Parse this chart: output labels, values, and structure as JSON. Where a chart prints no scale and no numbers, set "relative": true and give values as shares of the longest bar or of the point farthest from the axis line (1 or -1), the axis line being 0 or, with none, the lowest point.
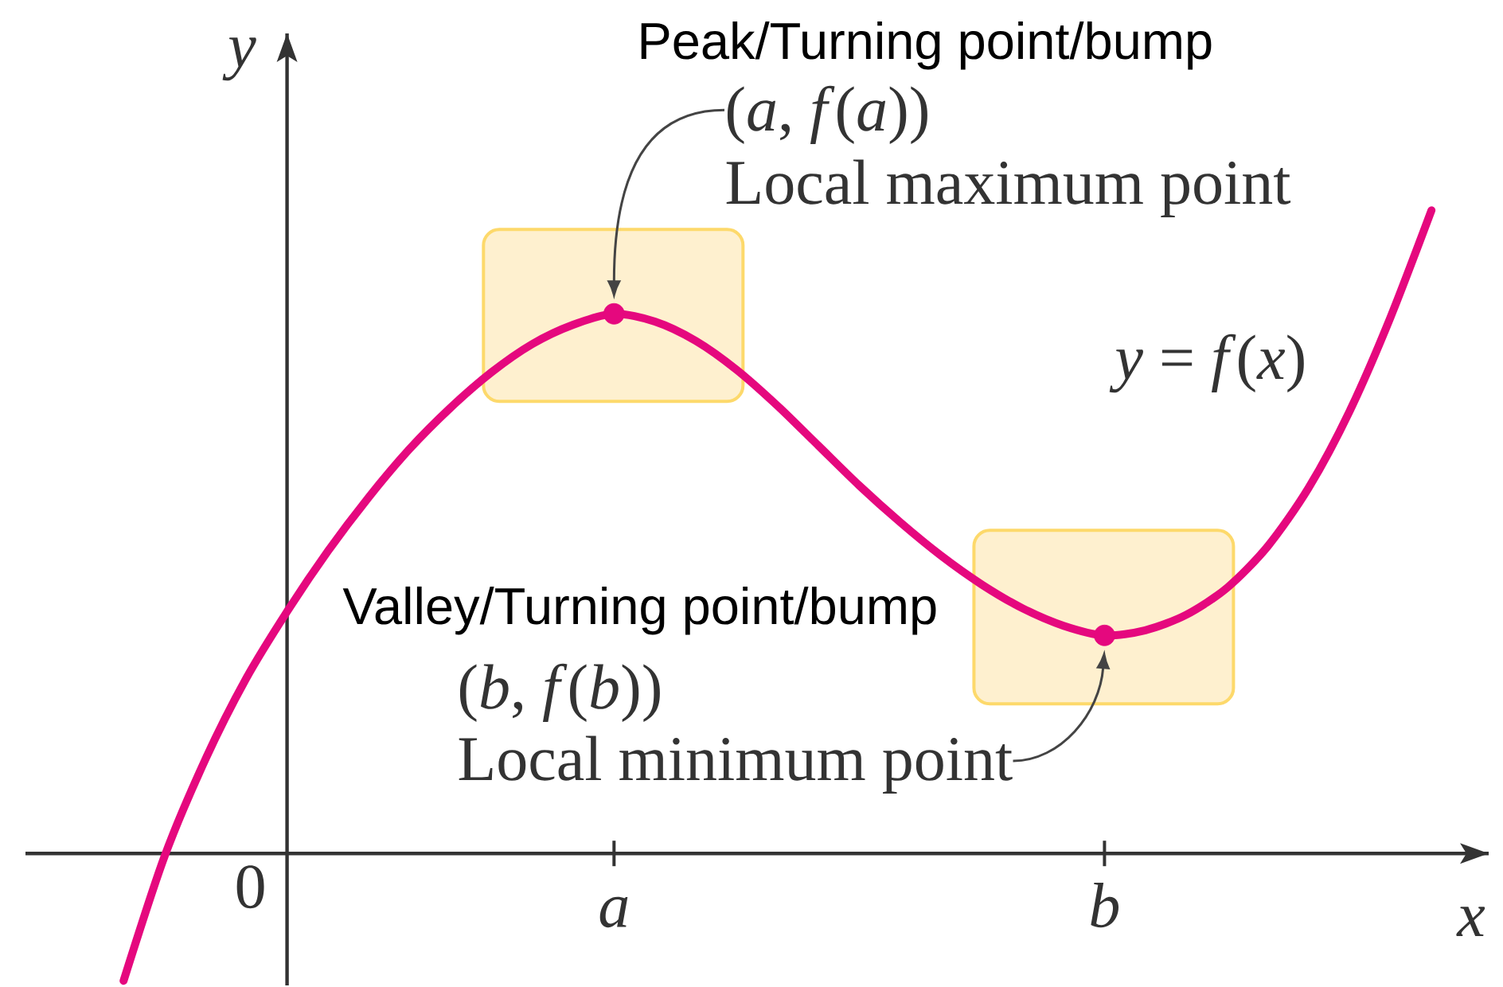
{
  "chart_data": {
    "type": "line",
    "relative": true,
    "xlabel": "x",
    "ylabel": "y",
    "categories": [
      null,
      null,
      null,
      null,
      "0",
      null,
      null,
      null,
      null,
      null,
      null,
      null,
      "a",
      null,
      null,
      null,
      null,
      null,
      null,
      null,
      null,
      null,
      null,
      null,
      "b",
      null,
      null,
      null,
      null,
      null,
      null,
      null,
      null
    ],
    "series": [
      {
        "color": "#e5087e",
        "marker": "none",
        "values": [
          -0.198,
          -0.005,
          0.146,
          0.272,
          0.376,
          0.47,
          0.554,
          0.629,
          0.693,
          0.748,
          0.792,
          0.822,
          0.839,
          0.827,
          0.797,
          0.752,
          0.696,
          0.634,
          0.572,
          0.515,
          0.463,
          0.418,
          0.381,
          0.354,
          0.339,
          0.347,
          0.371,
          0.413,
          0.478,
          0.569,
          0.688,
          0.834,
          1.0
        ]
      },
      {
        "type": "scatter",
        "color": "#e5087e",
        "marker": "circle",
        "x": [
          "a",
          "b"
        ],
        "values": [
          0.839,
          0.339
        ]
      }
    ],
    "annotations": [
      "Peak/Turning point/bump",
      "(*a*, *f*(*a*))",
      "Local maximum point",
      "*y* = *f*(*x*)",
      "Valley/Turning point/bump",
      "(*b*, *f*(*b*))",
      {
        "text": "Local minimum point",
        "x": "b",
        "y": 0.339
      }
    ]
  }
}
